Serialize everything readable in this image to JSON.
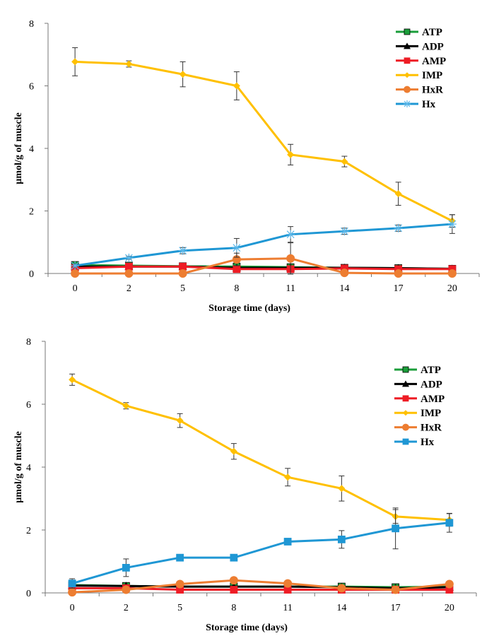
{
  "chart_data": [
    {
      "type": "line",
      "xlabel": "Storage time (days)",
      "ylabel": "µmol/g of muscle",
      "categories": [
        "0",
        "2",
        "5",
        "8",
        "11",
        "14",
        "17",
        "20"
      ],
      "ylim": [
        0,
        8
      ],
      "yticks": [
        "0",
        "2",
        "4",
        "6",
        "8"
      ],
      "grid": false,
      "legend": "top-right",
      "series": [
        {
          "name": "ATP",
          "color": "#1a9e3a",
          "marker": "square",
          "values": [
            0.27,
            0.25,
            0.23,
            0.22,
            0.2,
            0.18,
            0.17,
            0.15
          ]
        },
        {
          "name": "ADP",
          "color": "#000000",
          "marker": "triangle",
          "values": [
            0.22,
            0.22,
            0.22,
            0.18,
            0.18,
            0.18,
            0.17,
            0.15
          ]
        },
        {
          "name": "AMP",
          "color": "#ee1c25",
          "marker": "square",
          "values": [
            0.17,
            0.22,
            0.22,
            0.14,
            0.14,
            0.16,
            0.14,
            0.14
          ]
        },
        {
          "name": "IMP",
          "color": "#ffc000",
          "marker": "diamond",
          "values": [
            6.77,
            6.7,
            6.37,
            6.0,
            3.8,
            3.58,
            2.55,
            1.68
          ],
          "errors": [
            0.45,
            0.1,
            0.4,
            0.45,
            0.33,
            0.17,
            0.37,
            0.2
          ]
        },
        {
          "name": "HxR",
          "color": "#ed7d31",
          "marker": "circle",
          "values": [
            0,
            0,
            0,
            0.45,
            0.48,
            0.02,
            0,
            0
          ],
          "errors": [
            0,
            0,
            0,
            0.2,
            0.5,
            0,
            0,
            0
          ]
        },
        {
          "name": "Hx",
          "color": "#1f97d4",
          "marker": "asterisk",
          "values": [
            0.25,
            0.5,
            0.73,
            0.82,
            1.25,
            1.35,
            1.45,
            1.58
          ],
          "errors": [
            0.05,
            0.05,
            0.1,
            0.3,
            0.25,
            0.1,
            0.1,
            0.3
          ]
        }
      ]
    },
    {
      "type": "line",
      "xlabel": "Storage time (days)",
      "ylabel": "µmol/g of muscle",
      "categories": [
        "0",
        "2",
        "5",
        "8",
        "11",
        "14",
        "17",
        "20"
      ],
      "ylim": [
        0,
        8
      ],
      "yticks": [
        "0",
        "2",
        "4",
        "6",
        "8"
      ],
      "grid": false,
      "legend": "top-right",
      "series": [
        {
          "name": "ATP",
          "color": "#1a9e3a",
          "marker": "square",
          "values": [
            0.25,
            0.22,
            0.2,
            0.2,
            0.2,
            0.2,
            0.18,
            0.2
          ]
        },
        {
          "name": "ADP",
          "color": "#000000",
          "marker": "triangle",
          "values": [
            0.23,
            0.22,
            0.2,
            0.2,
            0.2,
            0.18,
            0.15,
            0.18
          ]
        },
        {
          "name": "AMP",
          "color": "#ee1c25",
          "marker": "square",
          "values": [
            0.15,
            0.15,
            0.1,
            0.1,
            0.1,
            0.1,
            0.1,
            0.1
          ]
        },
        {
          "name": "IMP",
          "color": "#ffc000",
          "marker": "diamond",
          "values": [
            6.78,
            5.95,
            5.48,
            4.5,
            3.68,
            3.32,
            2.43,
            2.32
          ],
          "errors": [
            0.18,
            0.1,
            0.22,
            0.25,
            0.28,
            0.4,
            0.22,
            0.2
          ]
        },
        {
          "name": "HxR",
          "color": "#ed7d31",
          "marker": "circle",
          "values": [
            0.02,
            0.1,
            0.28,
            0.4,
            0.3,
            0.15,
            0.1,
            0.28
          ]
        },
        {
          "name": "Hx",
          "color": "#1f97d4",
          "marker": "square",
          "values": [
            0.3,
            0.8,
            1.12,
            1.12,
            1.63,
            1.7,
            2.05,
            2.23
          ],
          "errors": [
            0.15,
            0.28,
            0,
            0,
            0,
            0.28,
            0.65,
            0.3
          ]
        }
      ]
    }
  ]
}
